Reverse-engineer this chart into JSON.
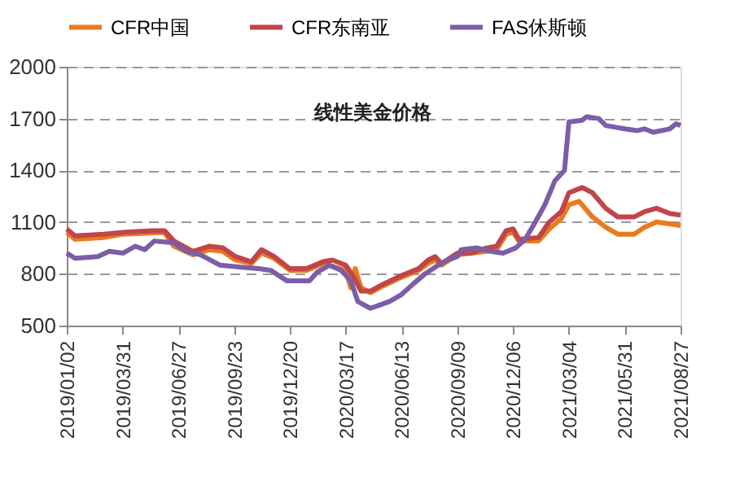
{
  "chart_data": {
    "type": "line",
    "annotations": [
      "线性美金价格"
    ],
    "xlim": [
      "2019-01-02",
      "2021-08-27"
    ],
    "xticks": [
      {
        "value": "2019-01-02",
        "label": "2019/01/02"
      },
      {
        "value": "2019-03-31",
        "label": "2019/03/31"
      },
      {
        "value": "2019-06-27",
        "label": "2019/06/27"
      },
      {
        "value": "2019-09-23",
        "label": "2019/09/23"
      },
      {
        "value": "2019-12-20",
        "label": "2019/12/20"
      },
      {
        "value": "2020-03-17",
        "label": "2020/03/17"
      },
      {
        "value": "2020-06-13",
        "label": "2020/06/13"
      },
      {
        "value": "2020-09-09",
        "label": "2020/09/09"
      },
      {
        "value": "2020-12-06",
        "label": "2020/12/06"
      },
      {
        "value": "2021-03-04",
        "label": "2021/03/04"
      },
      {
        "value": "2021-05-31",
        "label": "2021/05/31"
      },
      {
        "value": "2021-08-27",
        "label": "2021/08/27"
      }
    ],
    "ylim": [
      500,
      2000
    ],
    "yticks": [
      500,
      800,
      1100,
      1400,
      1700,
      2000
    ],
    "grid": "y",
    "legend": "top",
    "marker": "none",
    "line_style": "solid",
    "series": [
      {
        "name": "CFR中国",
        "color": "#e97b1c",
        "x": [
          "2019-01-02",
          "2019-01-15",
          "2019-03-01",
          "2019-04-01",
          "2019-06-05",
          "2019-06-20",
          "2019-07-20",
          "2019-08-15",
          "2019-09-05",
          "2019-09-25",
          "2019-10-20",
          "2019-11-05",
          "2019-11-25",
          "2019-12-20",
          "2020-01-15",
          "2020-02-10",
          "2020-03-17",
          "2020-03-25",
          "2020-04-01",
          "2020-04-10",
          "2020-04-25",
          "2020-05-15",
          "2020-06-13",
          "2020-07-10",
          "2020-07-25",
          "2020-08-05",
          "2020-08-15",
          "2020-09-09",
          "2020-10-01",
          "2020-10-25",
          "2020-11-10",
          "2020-11-25",
          "2020-12-06",
          "2020-12-15",
          "2021-01-15",
          "2021-02-01",
          "2021-02-20",
          "2021-03-04",
          "2021-03-20",
          "2021-04-10",
          "2021-05-01",
          "2021-05-20",
          "2021-06-15",
          "2021-07-01",
          "2021-07-20",
          "2021-08-10",
          "2021-08-27"
        ],
        "values": [
          1040,
          1000,
          1010,
          1030,
          1040,
          960,
          910,
          940,
          930,
          880,
          860,
          920,
          890,
          820,
          820,
          860,
          820,
          720,
          830,
          720,
          690,
          730,
          780,
          820,
          860,
          880,
          850,
          910,
          920,
          930,
          940,
          1030,
          1040,
          990,
          990,
          1060,
          1120,
          1200,
          1220,
          1130,
          1070,
          1030,
          1030,
          1070,
          1100,
          1090,
          1080
        ]
      },
      {
        "name": "CFR东南亚",
        "color": "#c0454a",
        "x": [
          "2019-01-02",
          "2019-01-15",
          "2019-03-01",
          "2019-04-01",
          "2019-05-15",
          "2019-06-05",
          "2019-06-20",
          "2019-07-20",
          "2019-08-15",
          "2019-09-05",
          "2019-09-25",
          "2019-10-20",
          "2019-11-05",
          "2019-11-25",
          "2019-12-20",
          "2020-01-15",
          "2020-02-10",
          "2020-02-25",
          "2020-03-17",
          "2020-03-30",
          "2020-04-10",
          "2020-04-25",
          "2020-05-15",
          "2020-06-13",
          "2020-07-10",
          "2020-07-25",
          "2020-08-05",
          "2020-08-15",
          "2020-09-09",
          "2020-10-01",
          "2020-10-25",
          "2020-11-10",
          "2020-11-25",
          "2020-12-06",
          "2020-12-15",
          "2021-01-15",
          "2021-02-01",
          "2021-02-20",
          "2021-03-04",
          "2021-03-25",
          "2021-04-10",
          "2021-05-01",
          "2021-05-20",
          "2021-06-15",
          "2021-07-01",
          "2021-07-20",
          "2021-08-10",
          "2021-08-27"
        ],
        "values": [
          1060,
          1020,
          1030,
          1040,
          1050,
          1050,
          990,
          930,
          960,
          950,
          900,
          870,
          940,
          900,
          830,
          830,
          870,
          880,
          850,
          780,
          700,
          700,
          740,
          790,
          830,
          880,
          900,
          860,
          920,
          920,
          950,
          960,
          1050,
          1060,
          1000,
          1010,
          1100,
          1160,
          1270,
          1300,
          1270,
          1180,
          1130,
          1130,
          1160,
          1180,
          1150,
          1140
        ]
      },
      {
        "name": "FAS休斯顿",
        "color": "#7b5ea7",
        "x": [
          "2019-01-02",
          "2019-01-15",
          "2019-02-20",
          "2019-03-10",
          "2019-04-01",
          "2019-04-20",
          "2019-05-05",
          "2019-05-20",
          "2019-06-20",
          "2019-07-10",
          "2019-08-01",
          "2019-09-01",
          "2019-10-01",
          "2019-11-01",
          "2019-11-20",
          "2019-12-15",
          "2020-01-20",
          "2020-02-01",
          "2020-02-20",
          "2020-03-10",
          "2020-03-25",
          "2020-04-05",
          "2020-04-25",
          "2020-05-10",
          "2020-05-25",
          "2020-06-13",
          "2020-07-01",
          "2020-07-20",
          "2020-08-10",
          "2020-08-25",
          "2020-09-09",
          "2020-09-15",
          "2020-10-10",
          "2020-11-01",
          "2020-11-20",
          "2020-12-10",
          "2020-12-25",
          "2021-01-10",
          "2021-01-25",
          "2021-02-10",
          "2021-02-25",
          "2021-03-04",
          "2021-03-25",
          "2021-04-01",
          "2021-04-20",
          "2021-05-01",
          "2021-05-31",
          "2021-06-20",
          "2021-07-01",
          "2021-07-15",
          "2021-08-10",
          "2021-08-20",
          "2021-08-27"
        ],
        "values": [
          920,
          890,
          900,
          930,
          920,
          960,
          940,
          990,
          980,
          930,
          910,
          850,
          840,
          830,
          820,
          760,
          760,
          810,
          850,
          820,
          760,
          640,
          600,
          620,
          640,
          680,
          740,
          800,
          850,
          880,
          900,
          940,
          950,
          930,
          920,
          950,
          1000,
          1100,
          1200,
          1340,
          1400,
          1680,
          1690,
          1710,
          1700,
          1660,
          1640,
          1630,
          1640,
          1620,
          1640,
          1670,
          1660
        ]
      }
    ]
  }
}
